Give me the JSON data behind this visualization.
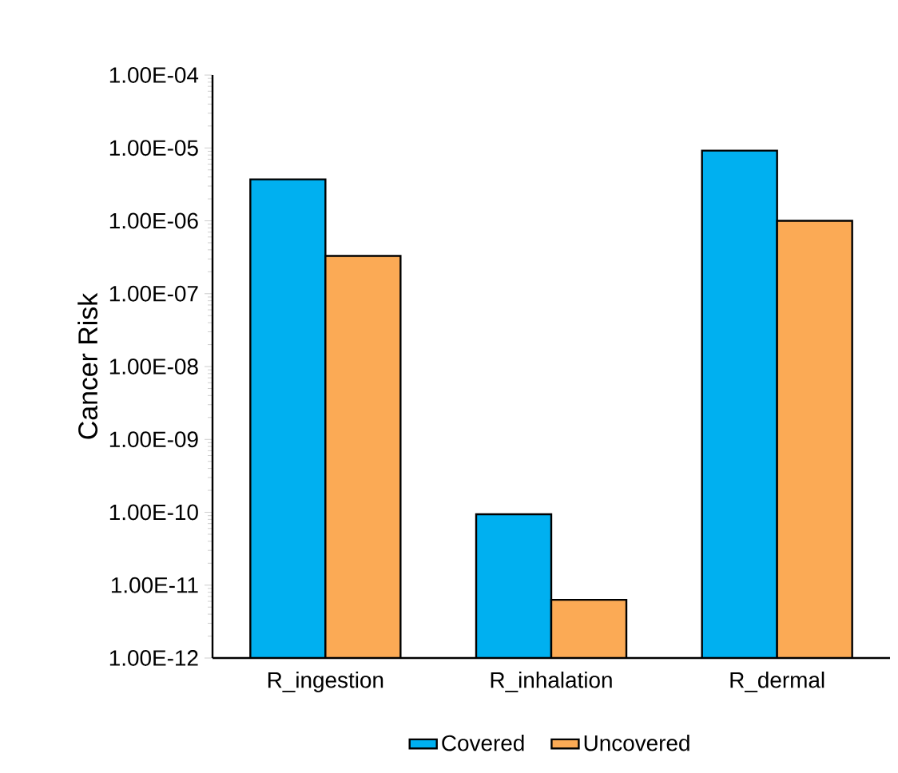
{
  "chart_data": {
    "type": "bar",
    "ylabel": "Cancer Risk",
    "categories": [
      "R_ingestion",
      "R_inhalation",
      "R_dermal"
    ],
    "series": [
      {
        "name": "Covered",
        "color": "#00b0f0",
        "values": [
          3.7e-06,
          9.4e-11,
          9.2e-06
        ]
      },
      {
        "name": "Uncovered",
        "color": "#fbaa55",
        "values": [
          3.3e-07,
          6.3e-12,
          1e-06
        ]
      }
    ],
    "log": "y",
    "ylim": [
      1e-12,
      0.0001
    ],
    "yticks": [
      {
        "value": 1e-12,
        "label": "1.00E-12"
      },
      {
        "value": 1e-11,
        "label": "1.00E-11"
      },
      {
        "value": 1e-10,
        "label": "1.00E-10"
      },
      {
        "value": 1e-09,
        "label": "1.00E-09"
      },
      {
        "value": 1e-08,
        "label": "1.00E-08"
      },
      {
        "value": 1e-07,
        "label": "1.00E-07"
      },
      {
        "value": 1e-06,
        "label": "1.00E-06"
      },
      {
        "value": 1e-05,
        "label": "1.00E-05"
      },
      {
        "value": 0.0001,
        "label": "1.00E-04"
      }
    ],
    "grid": false,
    "legend": "bottom"
  }
}
